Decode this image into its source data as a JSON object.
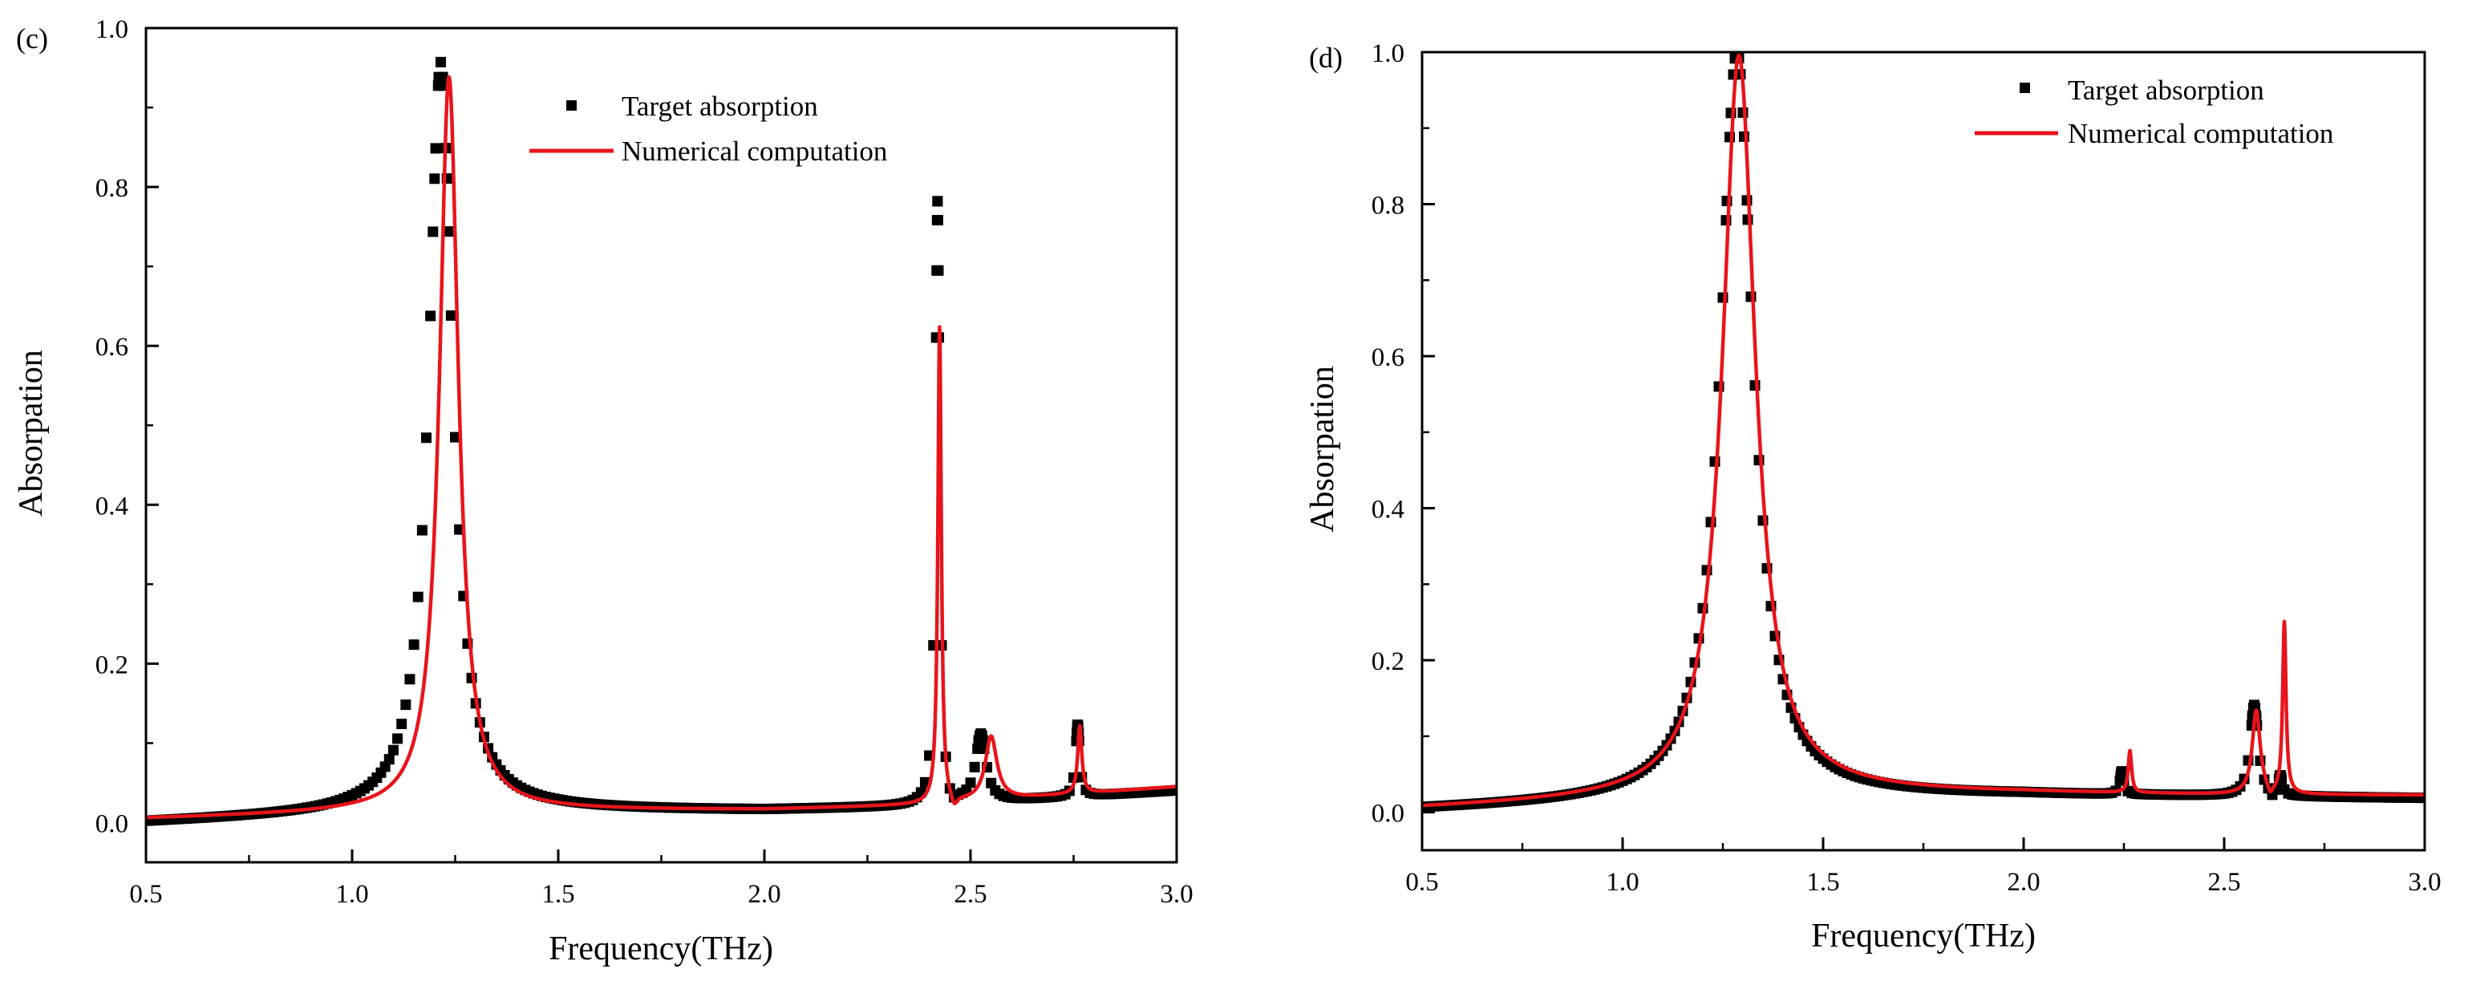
{
  "chart_data": [
    {
      "panel_label": "(c)",
      "type": "scatter+line",
      "xlabel": "Frequency(THz)",
      "ylabel": "Absorpation",
      "xlim": [
        0.5,
        3.0
      ],
      "ylim": [
        -0.05,
        1.0
      ],
      "x_ticks": [
        0.5,
        1.0,
        1.5,
        2.0,
        2.5,
        3.0
      ],
      "x_tick_labels": [
        "0.5",
        "1.0",
        "1.5",
        "2.0",
        "2.5",
        "3.0"
      ],
      "y_ticks": [
        0.0,
        0.2,
        0.4,
        0.6,
        0.8,
        1.0
      ],
      "y_tick_labels": [
        "0.0",
        "0.2",
        "0.4",
        "0.6",
        "0.8",
        "1.0"
      ],
      "legend_position": "top-center",
      "series": [
        {
          "name": "Target absorption",
          "style": "square-markers",
          "color": "#000000",
          "baseline": [
            [
              0.5,
              0.0
            ],
            [
              1.0,
              0.01
            ],
            [
              1.5,
              0.015
            ],
            [
              2.0,
              0.015
            ],
            [
              2.4,
              0.02
            ],
            [
              3.0,
              0.04
            ]
          ],
          "peaks": [
            {
              "center": 1.215,
              "amplitude": 0.945,
              "width": 0.035
            },
            {
              "center": 2.42,
              "amplitude": 0.76,
              "width": 0.006
            },
            {
              "center": 2.525,
              "amplitude": 0.085,
              "width": 0.015
            },
            {
              "center": 2.76,
              "amplitude": 0.09,
              "width": 0.006
            }
          ],
          "dip": {
            "center": 2.455,
            "depth": 0.015,
            "width": 0.01
          }
        },
        {
          "name": "Numerical computation",
          "style": "line",
          "color": "#e8141b",
          "baseline": [
            [
              0.5,
              0.005
            ],
            [
              1.0,
              0.012
            ],
            [
              1.5,
              0.015
            ],
            [
              2.0,
              0.016
            ],
            [
              2.4,
              0.022
            ],
            [
              3.0,
              0.045
            ]
          ],
          "peaks": [
            {
              "center": 1.235,
              "amplitude": 0.925,
              "width": 0.028
            },
            {
              "center": 2.425,
              "amplitude": 0.6,
              "width": 0.005
            },
            {
              "center": 2.55,
              "amplitude": 0.08,
              "width": 0.017
            },
            {
              "center": 2.765,
              "amplitude": 0.085,
              "width": 0.006
            }
          ],
          "dip": {
            "center": 2.46,
            "depth": 0.015,
            "width": 0.01
          }
        }
      ]
    },
    {
      "panel_label": "(d)",
      "type": "scatter+line",
      "xlabel": "Frequency(THz)",
      "ylabel": "Absorpation",
      "xlim": [
        0.5,
        3.0
      ],
      "ylim": [
        -0.05,
        1.0
      ],
      "x_ticks": [
        0.5,
        1.0,
        1.5,
        2.0,
        2.5,
        3.0
      ],
      "x_tick_labels": [
        "0.5",
        "1.0",
        "1.5",
        "2.0",
        "2.5",
        "3.0"
      ],
      "y_ticks": [
        0.0,
        0.2,
        0.4,
        0.6,
        0.8,
        1.0
      ],
      "y_tick_labels": [
        "0.0",
        "0.2",
        "0.4",
        "0.6",
        "0.8",
        "1.0"
      ],
      "legend_position": "top-right",
      "series": [
        {
          "name": "Target absorption",
          "style": "square-markers",
          "color": "#000000",
          "baseline": [
            [
              0.5,
              0.003
            ],
            [
              1.0,
              0.012
            ],
            [
              1.5,
              0.02
            ],
            [
              2.0,
              0.022
            ],
            [
              2.5,
              0.02
            ],
            [
              3.0,
              0.018
            ]
          ],
          "peaks": [
            {
              "center": 1.285,
              "amplitude": 0.985,
              "width": 0.05
            },
            {
              "center": 2.245,
              "amplitude": 0.03,
              "width": 0.006
            },
            {
              "center": 2.575,
              "amplitude": 0.12,
              "width": 0.012
            },
            {
              "center": 2.64,
              "amplitude": 0.025,
              "width": 0.006
            }
          ],
          "dip": {
            "center": 2.62,
            "depth": 0.008,
            "width": 0.008
          }
        },
        {
          "name": "Numerical computation",
          "style": "line",
          "color": "#e8141b",
          "baseline": [
            [
              0.5,
              0.005
            ],
            [
              1.0,
              0.015
            ],
            [
              1.5,
              0.025
            ],
            [
              2.0,
              0.025
            ],
            [
              2.5,
              0.022
            ],
            [
              3.0,
              0.022
            ]
          ],
          "peaks": [
            {
              "center": 1.29,
              "amplitude": 0.975,
              "width": 0.05
            },
            {
              "center": 2.265,
              "amplitude": 0.055,
              "width": 0.005
            },
            {
              "center": 2.58,
              "amplitude": 0.11,
              "width": 0.012
            },
            {
              "center": 2.65,
              "amplitude": 0.225,
              "width": 0.005
            }
          ],
          "dip": {
            "center": 2.615,
            "depth": 0.012,
            "width": 0.008
          }
        }
      ]
    }
  ]
}
